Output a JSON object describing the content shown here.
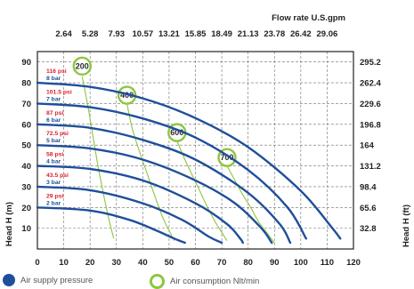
{
  "chart_data": {
    "type": "line",
    "top_axis_title": "Flow rate U.S.gpm",
    "top_ticks": [
      "2.64",
      "5.28",
      "7.93",
      "10.57",
      "13.21",
      "15.85",
      "18.49",
      "21.13",
      "23.78",
      "26.42",
      "29.06"
    ],
    "x_ticks": [
      "0",
      "10",
      "20",
      "30",
      "40",
      "50",
      "60",
      "70",
      "80",
      "90",
      "100",
      "110",
      "120"
    ],
    "xlim": [
      0,
      120
    ],
    "y_left_ticks": [
      "10",
      "20",
      "30",
      "40",
      "50",
      "60",
      "70",
      "80",
      "90"
    ],
    "ylabel_left": "Head H (m)",
    "ylim": [
      0,
      95
    ],
    "y_right_ticks": [
      {
        "at": 10,
        "label": "32.8"
      },
      {
        "at": 20,
        "label": "65.6"
      },
      {
        "at": 30,
        "label": "98.4"
      },
      {
        "at": 40,
        "label": "131.2"
      },
      {
        "at": 50,
        "label": "164"
      },
      {
        "at": 60,
        "label": "196.8"
      },
      {
        "at": 70,
        "label": "229.6"
      },
      {
        "at": 80,
        "label": "262.4"
      },
      {
        "at": 90,
        "label": "295.2"
      }
    ],
    "ylabel_right": "Head H (ft)",
    "grid": true,
    "pressure_series": [
      {
        "psi": "29 psi",
        "bar": "2 bar",
        "points": [
          [
            0,
            20
          ],
          [
            20,
            18.5
          ],
          [
            35,
            14
          ],
          [
            45,
            9
          ],
          [
            52,
            5
          ],
          [
            56,
            3
          ]
        ]
      },
      {
        "psi": "43.5 psi",
        "bar": "3 bar",
        "points": [
          [
            0,
            30
          ],
          [
            20,
            28.3
          ],
          [
            40,
            22
          ],
          [
            55,
            14
          ],
          [
            65,
            6
          ],
          [
            70,
            3
          ]
        ]
      },
      {
        "psi": "58 psi",
        "bar": "4 bar",
        "points": [
          [
            0,
            40
          ],
          [
            20,
            38.5
          ],
          [
            40,
            33
          ],
          [
            60,
            22
          ],
          [
            72,
            12
          ],
          [
            77,
            5
          ],
          [
            78,
            3
          ]
        ]
      },
      {
        "psi": "72.5 psi",
        "bar": "5 bar",
        "points": [
          [
            0,
            50
          ],
          [
            20,
            48.4
          ],
          [
            40,
            43
          ],
          [
            60,
            33
          ],
          [
            75,
            22
          ],
          [
            85,
            10
          ],
          [
            89,
            3
          ]
        ]
      },
      {
        "psi": "87 psi",
        "bar": "6 bar",
        "points": [
          [
            0,
            60
          ],
          [
            20,
            58.3
          ],
          [
            40,
            52.5
          ],
          [
            60,
            43
          ],
          [
            80,
            27
          ],
          [
            92,
            12
          ],
          [
            96,
            3
          ]
        ]
      },
      {
        "psi": "101.5 psi",
        "bar": "7 bar",
        "points": [
          [
            0,
            70
          ],
          [
            20,
            68.2
          ],
          [
            40,
            62.8
          ],
          [
            60,
            53.6
          ],
          [
            80,
            38
          ],
          [
            95,
            20
          ],
          [
            102,
            5
          ]
        ]
      },
      {
        "psi": "116 psi",
        "bar": "8 bar",
        "points": [
          [
            0,
            80
          ],
          [
            20,
            78
          ],
          [
            40,
            72.5
          ],
          [
            60,
            63
          ],
          [
            80,
            49
          ],
          [
            100,
            28
          ],
          [
            112,
            10
          ],
          [
            115,
            5
          ]
        ]
      }
    ],
    "air_consumption_series": [
      {
        "label": "200",
        "label_at": [
          17,
          88
        ],
        "points": [
          [
            17,
            83
          ],
          [
            19,
            70
          ],
          [
            21,
            55
          ],
          [
            23,
            40
          ],
          [
            25,
            27
          ],
          [
            27,
            15
          ],
          [
            29,
            5
          ]
        ]
      },
      {
        "label": "400",
        "label_at": [
          34,
          74
        ],
        "points": [
          [
            34,
            70
          ],
          [
            36,
            58
          ],
          [
            39,
            46
          ],
          [
            42,
            35
          ],
          [
            45,
            24
          ],
          [
            48,
            14
          ],
          [
            52,
            4
          ]
        ]
      },
      {
        "label": "600",
        "label_at": [
          53,
          56
        ],
        "points": [
          [
            53,
            52
          ],
          [
            56,
            43
          ],
          [
            59,
            35
          ],
          [
            62,
            27
          ],
          [
            65,
            19
          ],
          [
            68,
            12
          ],
          [
            72,
            4
          ]
        ]
      },
      {
        "label": "700",
        "label_at": [
          72,
          44
        ],
        "points": [
          [
            72,
            40
          ],
          [
            75,
            33
          ],
          [
            78,
            26
          ],
          [
            81,
            20
          ],
          [
            84,
            13
          ],
          [
            87,
            8
          ],
          [
            90,
            3
          ]
        ]
      }
    ]
  },
  "legend": {
    "air_supply_label": "Air supply pressure",
    "air_consumption_label": "Air consumption Nlt/min"
  },
  "colors": {
    "pressure_curve": "#1f4f9a",
    "air_curve": "#8cc63f",
    "psi_text": "#e0202a",
    "bar_text": "#1f4f9a",
    "grid": "#6e6e6e"
  }
}
